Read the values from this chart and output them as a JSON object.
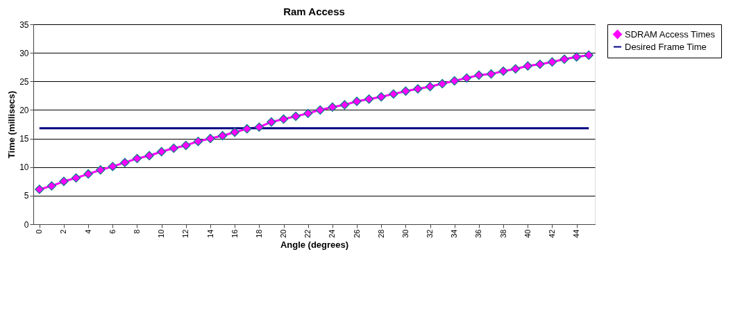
{
  "chart_data": {
    "type": "line",
    "title": "Ram Access",
    "xlabel": "Angle (degrees)",
    "ylabel": "Time (millisecs)",
    "x": [
      0,
      1,
      2,
      3,
      4,
      5,
      6,
      7,
      8,
      9,
      10,
      11,
      12,
      13,
      14,
      15,
      16,
      17,
      18,
      19,
      20,
      21,
      22,
      23,
      24,
      25,
      26,
      27,
      28,
      29,
      30,
      31,
      32,
      33,
      34,
      35,
      36,
      37,
      38,
      39,
      40,
      41,
      42,
      43,
      44,
      45
    ],
    "series": [
      {
        "name": "SDRAM Access Times",
        "color": "#ff00ff",
        "marker": "diamond",
        "values": [
          6.1,
          6.7,
          7.5,
          8.1,
          8.8,
          9.5,
          10.1,
          10.8,
          11.5,
          12.0,
          12.7,
          13.3,
          13.8,
          14.5,
          15.0,
          15.5,
          16.1,
          16.7,
          17.0,
          17.9,
          18.4,
          18.9,
          19.4,
          20.0,
          20.5,
          20.9,
          21.5,
          21.9,
          22.3,
          22.8,
          23.3,
          23.7,
          24.1,
          24.6,
          25.1,
          25.6,
          26.1,
          26.3,
          26.8,
          27.2,
          27.7,
          28.0,
          28.4,
          28.9,
          29.3,
          29.6
        ]
      },
      {
        "name": "Desired Frame Time",
        "color": "#000080",
        "marker": "none",
        "values": [
          16.8,
          16.8,
          16.8,
          16.8,
          16.8,
          16.8,
          16.8,
          16.8,
          16.8,
          16.8,
          16.8,
          16.8,
          16.8,
          16.8,
          16.8,
          16.8,
          16.8,
          16.8,
          16.8,
          16.8,
          16.8,
          16.8,
          16.8,
          16.8,
          16.8,
          16.8,
          16.8,
          16.8,
          16.8,
          16.8,
          16.8,
          16.8,
          16.8,
          16.8,
          16.8,
          16.8,
          16.8,
          16.8,
          16.8,
          16.8,
          16.8,
          16.8,
          16.8,
          16.8,
          16.8,
          16.8
        ]
      }
    ],
    "xlim": [
      -0.5,
      45.5
    ],
    "xticks": [
      0,
      2,
      4,
      6,
      8,
      10,
      12,
      14,
      16,
      18,
      20,
      22,
      24,
      26,
      28,
      30,
      32,
      34,
      36,
      38,
      40,
      42,
      44
    ],
    "ylim": [
      0,
      35
    ],
    "yticks": [
      0,
      5,
      10,
      15,
      20,
      25,
      30,
      35
    ],
    "grid": "y",
    "legend": "right"
  }
}
